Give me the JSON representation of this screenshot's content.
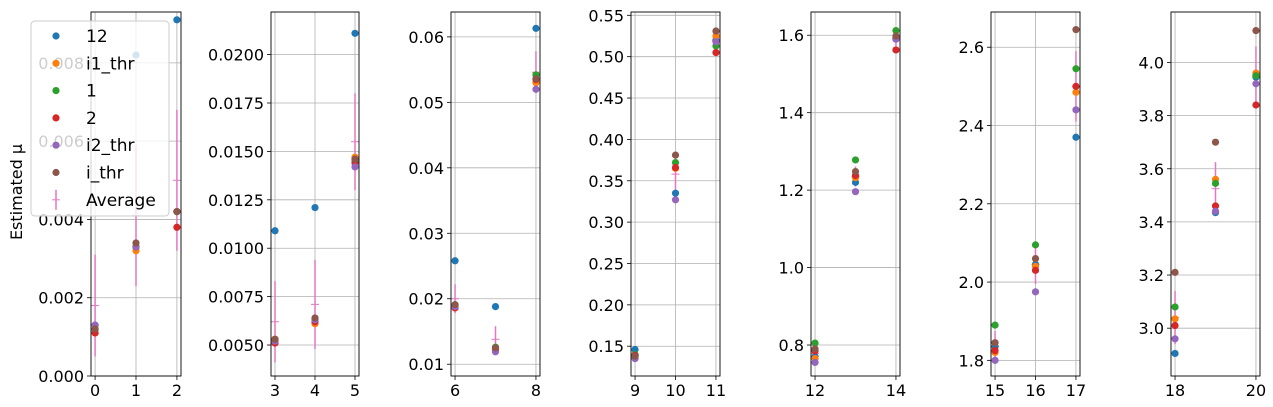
{
  "chart_data": {
    "type": "scatter",
    "ylabel": "Estimated μ",
    "grid": true,
    "legend": {
      "placement": "upper-left",
      "entries": [
        {
          "name": "12",
          "color": "#1f77b4",
          "marker": "dot"
        },
        {
          "name": "i1_thr",
          "color": "#ff7f0e",
          "marker": "dot"
        },
        {
          "name": "1",
          "color": "#2ca02c",
          "marker": "dot"
        },
        {
          "name": "2",
          "color": "#d62728",
          "marker": "dot"
        },
        {
          "name": "i2_thr",
          "color": "#9467bd",
          "marker": "dot"
        },
        {
          "name": "i_thr",
          "color": "#8c564b",
          "marker": "dot"
        },
        {
          "name": "Average",
          "color": "#e377c2",
          "marker": "errorbar"
        }
      ]
    },
    "series_colors": {
      "12": "#1f77b4",
      "i1_thr": "#ff7f0e",
      "1": "#2ca02c",
      "2": "#d62728",
      "i2_thr": "#9467bd",
      "i_thr": "#8c564b",
      "Average": "#e377c2"
    },
    "panels": [
      {
        "xlim": [
          -0.1,
          2.1
        ],
        "ylim": [
          0.0,
          0.0093
        ],
        "xticks": [
          0,
          1,
          2
        ],
        "xtick_labels": [
          "0",
          "1",
          "2"
        ],
        "yticks": [
          0.0,
          0.002,
          0.004,
          0.006,
          0.008
        ],
        "ytick_labels": [
          "0.000",
          "0.002",
          "0.004",
          "0.006",
          "0.008"
        ],
        "x": [
          0,
          1,
          2
        ],
        "series": {
          "12": [
            0.0013,
            0.0082,
            0.0091
          ],
          "i1_thr": [
            0.0011,
            0.0032,
            0.0042
          ],
          "1": [
            0.0012,
            0.0033,
            0.0042
          ],
          "2": [
            0.0011,
            0.0033,
            0.0038
          ],
          "i2_thr": [
            0.0013,
            0.0033,
            0.0042
          ],
          "i_thr": [
            0.0012,
            0.0034,
            0.0042
          ]
        },
        "average": {
          "mean": [
            0.0018,
            0.0041,
            0.005
          ],
          "err": [
            0.0013,
            0.0018,
            0.0018
          ]
        }
      },
      {
        "xlim": [
          2.9,
          5.1
        ],
        "ylim": [
          0.0034,
          0.0222
        ],
        "xticks": [
          3,
          4,
          5
        ],
        "xtick_labels": [
          "3",
          "4",
          "5"
        ],
        "yticks": [
          0.005,
          0.0075,
          0.01,
          0.0125,
          0.015,
          0.0175,
          0.02
        ],
        "ytick_labels": [
          "0.0050",
          "0.0075",
          "0.0100",
          "0.0125",
          "0.0150",
          "0.0175",
          "0.0200"
        ],
        "x": [
          3,
          4,
          5
        ],
        "series": {
          "12": [
            0.0109,
            0.0121,
            0.0211
          ],
          "i1_thr": [
            0.0053,
            0.0061,
            0.0147
          ],
          "1": [
            0.0052,
            0.0063,
            0.0145
          ],
          "2": [
            0.0051,
            0.0062,
            0.0144
          ],
          "i2_thr": [
            0.0052,
            0.0063,
            0.0142
          ],
          "i_thr": [
            0.0053,
            0.0064,
            0.0146
          ]
        },
        "average": {
          "mean": [
            0.0062,
            0.0071,
            0.0155
          ],
          "err": [
            0.0021,
            0.0023,
            0.0025
          ]
        }
      },
      {
        "xlim": [
          5.9,
          8.1
        ],
        "ylim": [
          0.0082,
          0.0638
        ],
        "xticks": [
          6,
          8
        ],
        "xtick_labels": [
          "6",
          "8"
        ],
        "yticks": [
          0.01,
          0.02,
          0.03,
          0.04,
          0.05,
          0.06
        ],
        "ytick_labels": [
          "0.01",
          "0.02",
          "0.03",
          "0.04",
          "0.05",
          "0.06"
        ],
        "x": [
          6,
          7,
          8
        ],
        "series": {
          "12": [
            0.0258,
            0.0188,
            0.0613
          ],
          "i1_thr": [
            0.0188,
            0.0122,
            0.053
          ],
          "1": [
            0.019,
            0.0126,
            0.0542
          ],
          "2": [
            0.0186,
            0.0123,
            0.0535
          ],
          "i2_thr": [
            0.0188,
            0.0119,
            0.052
          ],
          "i_thr": [
            0.0191,
            0.0125,
            0.0536
          ]
        },
        "average": {
          "mean": [
            0.02,
            0.0138,
            0.0546
          ],
          "err": [
            0.0022,
            0.002,
            0.0032
          ]
        }
      },
      {
        "xlim": [
          8.9,
          11.1
        ],
        "ylim": [
          0.114,
          0.554
        ],
        "xticks": [
          9,
          10,
          11
        ],
        "xtick_labels": [
          "9",
          "10",
          "11"
        ],
        "yticks": [
          0.15,
          0.2,
          0.25,
          0.3,
          0.35,
          0.4,
          0.45,
          0.5,
          0.55
        ],
        "ytick_labels": [
          "0.15",
          "0.20",
          "0.25",
          "0.30",
          "0.35",
          "0.40",
          "0.45",
          "0.50",
          "0.55"
        ],
        "x": [
          9,
          10,
          11
        ],
        "series": {
          "12": [
            0.146,
            0.335,
            0.52
          ],
          "i1_thr": [
            0.137,
            0.365,
            0.525
          ],
          "1": [
            0.14,
            0.372,
            0.513
          ],
          "2": [
            0.139,
            0.366,
            0.505
          ],
          "i2_thr": [
            0.135,
            0.327,
            0.518
          ],
          "i_thr": [
            0.138,
            0.381,
            0.531
          ]
        },
        "average": {
          "mean": [
            0.139,
            0.358,
            0.519
          ],
          "err": [
            0.008,
            0.022,
            0.014
          ]
        }
      },
      {
        "xlim": [
          11.9,
          14.1
        ],
        "ylim": [
          0.72,
          1.66
        ],
        "xticks": [
          12,
          14
        ],
        "xtick_labels": [
          "12",
          "14"
        ],
        "yticks": [
          0.8,
          1.0,
          1.2,
          1.4,
          1.6
        ],
        "ytick_labels": [
          "0.8",
          "1.0",
          "1.2",
          "1.4",
          "1.6"
        ],
        "x": [
          12,
          13,
          14
        ],
        "series": {
          "12": [
            0.77,
            1.22,
            1.59
          ],
          "i1_thr": [
            0.765,
            1.232,
            1.595
          ],
          "1": [
            0.805,
            1.278,
            1.612
          ],
          "2": [
            0.785,
            1.238,
            1.562
          ],
          "i2_thr": [
            0.755,
            1.196,
            1.59
          ],
          "i_thr": [
            0.79,
            1.248,
            1.598
          ]
        },
        "average": {
          "mean": [
            0.778,
            1.235,
            1.592
          ],
          "err": [
            0.022,
            0.026,
            0.02
          ]
        }
      },
      {
        "xlim": [
          14.9,
          17.1
        ],
        "ylim": [
          1.76,
          2.69
        ],
        "xticks": [
          15,
          16,
          17
        ],
        "xtick_labels": [
          "15",
          "16",
          "17"
        ],
        "yticks": [
          1.8,
          2.0,
          2.2,
          2.4,
          2.6
        ],
        "ytick_labels": [
          "1.8",
          "2.0",
          "2.2",
          "2.4",
          "2.6"
        ],
        "x": [
          15,
          16,
          17
        ],
        "series": {
          "12": [
            1.835,
            2.045,
            2.37
          ],
          "i1_thr": [
            1.82,
            2.04,
            2.485
          ],
          "1": [
            1.89,
            2.095,
            2.545
          ],
          "2": [
            1.825,
            2.03,
            2.5
          ],
          "i2_thr": [
            1.8,
            1.975,
            2.44
          ],
          "i_thr": [
            1.845,
            2.06,
            2.645
          ]
        },
        "average": {
          "mean": [
            1.835,
            2.045,
            2.5
          ],
          "err": [
            0.04,
            0.05,
            0.09
          ]
        }
      },
      {
        "xlim": [
          17.9,
          20.1
        ],
        "ylim": [
          2.82,
          4.19
        ],
        "xticks": [
          18,
          20
        ],
        "xtick_labels": [
          "18",
          "20"
        ],
        "yticks": [
          3.0,
          3.2,
          3.4,
          3.6,
          3.8,
          4.0
        ],
        "ytick_labels": [
          "3.0",
          "3.2",
          "3.4",
          "3.6",
          "3.8",
          "4.0"
        ],
        "x": [
          18,
          19,
          20
        ],
        "series": {
          "12": [
            2.905,
            3.435,
            3.945
          ],
          "i1_thr": [
            3.035,
            3.56,
            3.96
          ],
          "1": [
            3.08,
            3.545,
            3.95
          ],
          "2": [
            3.01,
            3.46,
            3.84
          ],
          "i2_thr": [
            2.96,
            3.44,
            3.92
          ],
          "i_thr": [
            3.21,
            3.7,
            4.12
          ]
        },
        "average": {
          "mean": [
            3.04,
            3.525,
            3.95
          ],
          "err": [
            0.1,
            0.1,
            0.11
          ]
        }
      }
    ]
  }
}
